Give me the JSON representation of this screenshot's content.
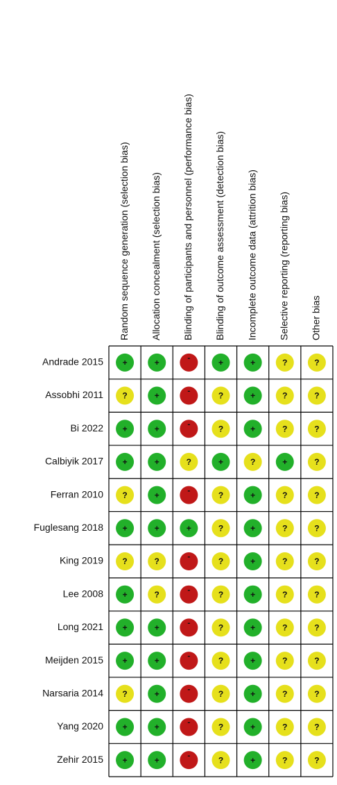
{
  "columns": [
    "Random sequence generation (selection bias)",
    "Allocation concealment (selection bias)",
    "Blinding of participants and personnel (performance bias)",
    "Blinding of outcome assessment (detection bias)",
    "Incomplete outcome data (attrition bias)",
    "Selective reporting (reporting bias)",
    "Other bias"
  ],
  "symbol_colors": {
    "+": "#22b02a",
    "?": "#e6e01c",
    "-": "#c01818"
  },
  "rows": [
    {
      "study": "Andrade 2015",
      "cells": [
        "+",
        "+",
        "-",
        "+",
        "+",
        "?",
        "?"
      ]
    },
    {
      "study": "Assobhi 2011",
      "cells": [
        "?",
        "+",
        "-",
        "?",
        "+",
        "?",
        "?"
      ]
    },
    {
      "study": "Bi 2022",
      "cells": [
        "+",
        "+",
        "-",
        "?",
        "+",
        "?",
        "?"
      ]
    },
    {
      "study": "Calbiyik 2017",
      "cells": [
        "+",
        "+",
        "?",
        "+",
        "?",
        "+",
        "?"
      ]
    },
    {
      "study": "Ferran 2010",
      "cells": [
        "?",
        "+",
        "-",
        "?",
        "+",
        "?",
        "?"
      ]
    },
    {
      "study": "Fuglesang 2018",
      "cells": [
        "+",
        "+",
        "+",
        "?",
        "+",
        "?",
        "?"
      ]
    },
    {
      "study": "King 2019",
      "cells": [
        "?",
        "?",
        "-",
        "?",
        "+",
        "?",
        "?"
      ]
    },
    {
      "study": "Lee 2008",
      "cells": [
        "+",
        "?",
        "-",
        "?",
        "+",
        "?",
        "?"
      ]
    },
    {
      "study": "Long 2021",
      "cells": [
        "+",
        "+",
        "-",
        "?",
        "+",
        "?",
        "?"
      ]
    },
    {
      "study": "Meijden 2015",
      "cells": [
        "+",
        "+",
        "-",
        "?",
        "+",
        "?",
        "?"
      ]
    },
    {
      "study": "Narsaria 2014",
      "cells": [
        "?",
        "+",
        "-",
        "?",
        "+",
        "?",
        "?"
      ]
    },
    {
      "study": "Yang 2020",
      "cells": [
        "+",
        "+",
        "-",
        "?",
        "+",
        "?",
        "?"
      ]
    },
    {
      "study": "Zehir 2015",
      "cells": [
        "+",
        "+",
        "-",
        "?",
        "+",
        "?",
        "?"
      ]
    }
  ]
}
